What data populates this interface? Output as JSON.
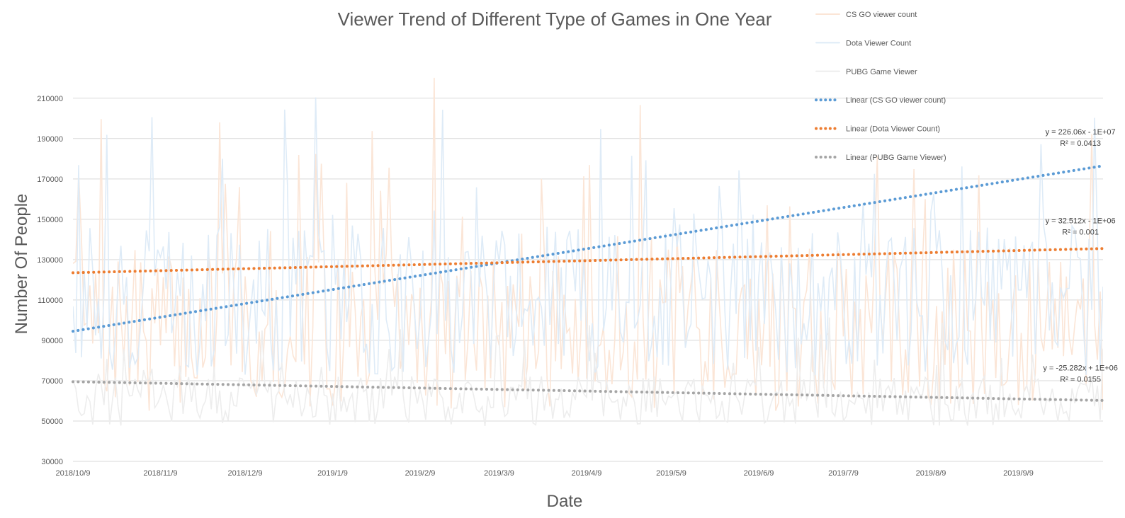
{
  "chart_data": {
    "type": "line",
    "title": "Viewer Trend of Different Type of Games in One Year",
    "xlabel": "Date",
    "ylabel": "Number Of People",
    "x_start": "2018-10-09",
    "x_end": "2019-10-09",
    "x_tick_labels": [
      "2018/10/9",
      "2018/11/9",
      "2018/12/9",
      "2019/1/9",
      "2019/2/9",
      "2019/3/9",
      "2019/4/9",
      "2019/5/9",
      "2019/6/9",
      "2019/7/9",
      "2019/8/9",
      "2019/9/9"
    ],
    "x_tick_dates": [
      "2018-10-09",
      "2018-11-09",
      "2018-12-09",
      "2019-01-09",
      "2019-02-09",
      "2019-03-09",
      "2019-04-09",
      "2019-05-09",
      "2019-06-09",
      "2019-07-09",
      "2019-08-09",
      "2019-09-09"
    ],
    "ylim": [
      30000,
      225000
    ],
    "y_ticks": [
      30000,
      50000,
      70000,
      90000,
      110000,
      130000,
      150000,
      170000,
      190000,
      210000
    ],
    "grid": true,
    "legend_position": "top-right",
    "series": [
      {
        "name": "CS GO viewer count",
        "color": "#fbe5d6",
        "kind": "raw",
        "seed": 7,
        "base": 95000,
        "amp": 80000
      },
      {
        "name": "Dota Viewer Count",
        "color": "#deebf7",
        "kind": "raw",
        "seed": 13,
        "base": 110000,
        "amp": 75000
      },
      {
        "name": "PUBG Game Viewer",
        "color": "#ededed",
        "kind": "raw",
        "seed": 29,
        "base": 60000,
        "amp": 25000
      }
    ],
    "trendlines": [
      {
        "name": "Linear (CS GO viewer count)",
        "color": "#5b9bd5",
        "start": 94500,
        "end": 176500,
        "equation": "y = 226.06x - 1E+07",
        "r2": "R² = 0.0413",
        "label_date": "2019-10-01",
        "label_y": 192000
      },
      {
        "name": "Linear (Dota Viewer Count)",
        "color": "#ed7d31",
        "start": 123500,
        "end": 135500,
        "equation": "y = 32.512x - 1E+06",
        "r2": "R² = 0.001",
        "label_date": "2019-10-01",
        "label_y": 148000
      },
      {
        "name": "Linear (PUBG Game Viewer)",
        "color": "#a5a5a5",
        "start": 69500,
        "end": 60200,
        "equation": "y = -25.282x + 1E+06",
        "r2": "R² = 0.0155",
        "label_date": "2019-10-01",
        "label_y": 75000
      }
    ]
  }
}
